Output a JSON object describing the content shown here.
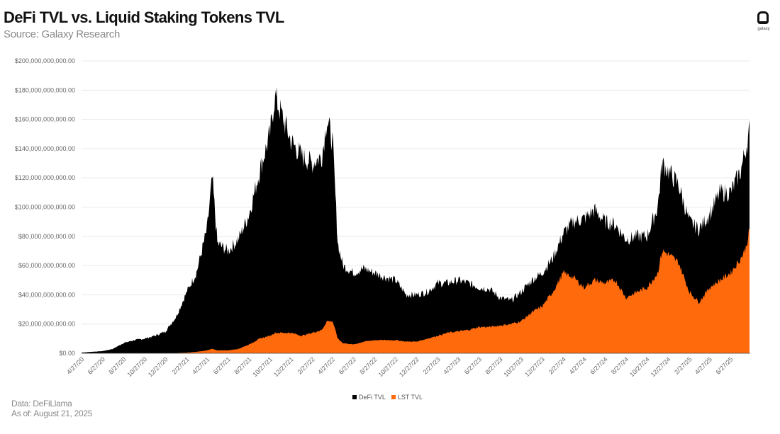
{
  "header": {
    "title": "DeFi TVL vs. Liquid Staking Tokens TVL",
    "subtitle": "Source: Galaxy Research",
    "logo_text": "galaxy"
  },
  "footer": {
    "data_source": "Data: DeFiLlama",
    "as_of": "As of: August 21, 2025"
  },
  "legend": [
    {
      "label": "DeFi TVL",
      "color": "#000000"
    },
    {
      "label": "LST TVL",
      "color": "#ff6a0d"
    }
  ],
  "colors": {
    "defi": "#000000",
    "lst": "#ff6a0d",
    "grid": "#e3e3e3"
  },
  "chart_data": {
    "type": "area",
    "title": "DeFi TVL vs. Liquid Staking Tokens TVL",
    "subtitle": "Source: Galaxy Research",
    "xlabel": "",
    "ylabel": "",
    "ylim": [
      0,
      200000000000
    ],
    "y_ticks": [
      "$0.00",
      "$20,000,000,000.00",
      "$40,000,000,000.00",
      "$60,000,000,000.00",
      "$80,000,000,000.00",
      "$100,000,000,000.00",
      "$120,000,000,000.00",
      "$140,000,000,000.00",
      "$160,000,000,000.00",
      "$180,000,000,000.00",
      "$200,000,000,000.00"
    ],
    "x_ticks": [
      "4/27/20",
      "6/27/20",
      "8/27/20",
      "10/27/20",
      "12/27/20",
      "2/27/21",
      "4/27/21",
      "6/27/21",
      "8/27/21",
      "10/27/21",
      "12/27/21",
      "2/27/22",
      "4/27/22",
      "6/27/22",
      "8/27/22",
      "10/27/22",
      "12/27/22",
      "2/27/23",
      "4/27/23",
      "6/27/23",
      "8/27/23",
      "10/27/23",
      "12/27/23",
      "2/27/24",
      "4/27/24",
      "6/27/24",
      "8/27/24",
      "10/27/24",
      "12/27/24",
      "2/27/25",
      "4/27/25",
      "6/27/25"
    ],
    "grid": true,
    "legend_position": "bottom",
    "units": "USD billions (approx.)",
    "x": [
      "4/27/20",
      "5/27/20",
      "6/27/20",
      "7/27/20",
      "8/27/20",
      "9/27/20",
      "10/27/20",
      "11/27/20",
      "12/27/20",
      "1/27/21",
      "2/27/21",
      "3/27/21",
      "4/27/21",
      "5/12/21",
      "5/27/21",
      "6/27/21",
      "7/27/21",
      "8/27/21",
      "9/27/21",
      "10/27/21",
      "11/10/21",
      "11/27/21",
      "12/27/21",
      "1/27/22",
      "2/27/22",
      "3/27/22",
      "4/10/22",
      "4/27/22",
      "5/12/22",
      "5/27/22",
      "6/27/22",
      "7/27/22",
      "8/27/22",
      "9/27/22",
      "10/27/22",
      "11/27/22",
      "12/27/22",
      "1/27/23",
      "2/27/23",
      "3/27/23",
      "4/27/23",
      "5/27/23",
      "6/27/23",
      "7/27/23",
      "8/27/23",
      "9/27/23",
      "10/27/23",
      "11/27/23",
      "12/27/23",
      "1/27/24",
      "2/27/24",
      "3/27/24",
      "4/27/24",
      "5/27/24",
      "6/27/24",
      "7/27/24",
      "8/27/24",
      "9/27/24",
      "10/27/24",
      "11/27/24",
      "12/10/24",
      "12/27/24",
      "1/27/25",
      "2/27/25",
      "3/27/25",
      "4/27/25",
      "5/27/25",
      "6/27/25",
      "7/27/25",
      "8/10/25",
      "8/21/25"
    ],
    "series": [
      {
        "name": "DeFi TVL",
        "color": "#000000",
        "values": [
          0.5,
          1,
          1.5,
          3,
          7,
          9,
          10,
          12,
          15,
          25,
          42,
          55,
          85,
          120,
          75,
          70,
          78,
          95,
          125,
          150,
          176,
          165,
          145,
          135,
          130,
          135,
          160,
          145,
          75,
          60,
          55,
          58,
          55,
          52,
          50,
          40,
          40,
          42,
          48,
          48,
          50,
          48,
          45,
          44,
          38,
          36,
          42,
          50,
          55,
          65,
          82,
          90,
          92,
          98,
          90,
          88,
          78,
          80,
          80,
          100,
          130,
          125,
          115,
          90,
          85,
          95,
          110,
          110,
          125,
          140,
          152
        ]
      },
      {
        "name": "LST TVL",
        "color": "#ff6a0d",
        "values": [
          0,
          0,
          0,
          0,
          0,
          0,
          0,
          0,
          0,
          0.2,
          0.5,
          1,
          2,
          3,
          2,
          2,
          3,
          6,
          10,
          12,
          14,
          14,
          14,
          12,
          14,
          16,
          22,
          22,
          10,
          7,
          6,
          8,
          9,
          9,
          9,
          8,
          8,
          10,
          12,
          14,
          15,
          16,
          18,
          18,
          19,
          20,
          22,
          28,
          32,
          42,
          55,
          52,
          45,
          50,
          48,
          50,
          38,
          42,
          45,
          55,
          70,
          68,
          62,
          42,
          35,
          45,
          50,
          55,
          65,
          72,
          84
        ]
      }
    ]
  }
}
